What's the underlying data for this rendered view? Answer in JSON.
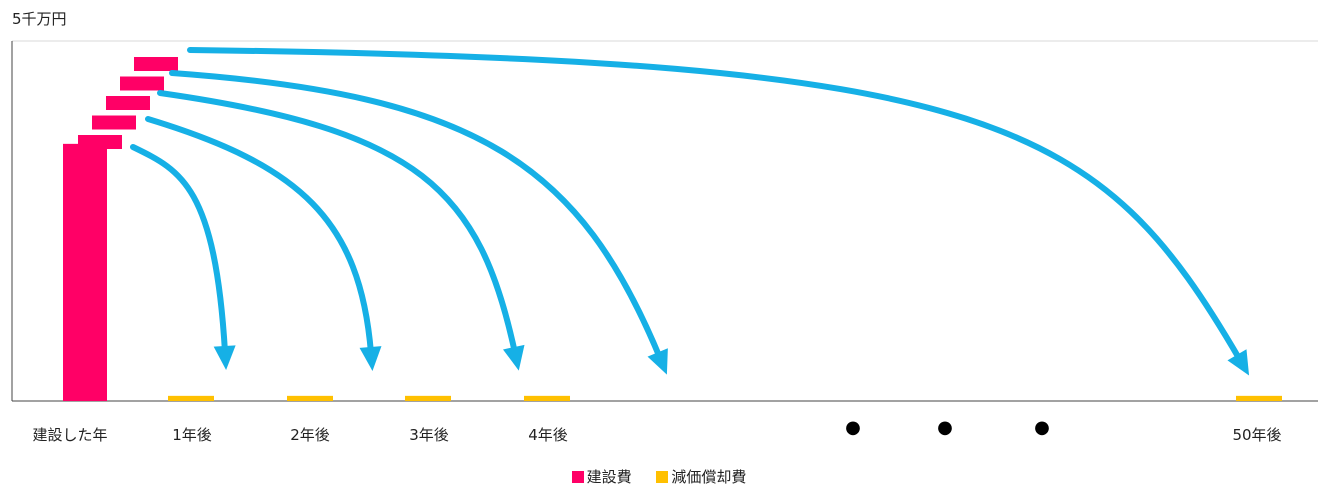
{
  "chart_data": {
    "type": "bar",
    "y_axis_label": "5千万円",
    "categories": [
      "建設した年",
      "1年後",
      "2年後",
      "3年後",
      "4年後",
      "50年後"
    ],
    "ellipsis": [
      "●",
      "●",
      "●"
    ],
    "series": [
      {
        "name": "建設費",
        "color": "#FF0066",
        "values": [
          2.5,
          0,
          0,
          0,
          0,
          0
        ]
      },
      {
        "name": "減価償却費",
        "color": "#FFC000",
        "values": [
          0,
          0.05,
          0.05,
          0.05,
          0.05,
          0.05
        ]
      }
    ],
    "stacked_segments": {
      "series": "建設費",
      "category": "建設した年",
      "count": 5,
      "arrow_targets": [
        "1年後",
        "2年後",
        "3年後",
        "4年後",
        "",
        "50年後"
      ]
    },
    "arrow_color": "#16B0E6",
    "ylim": [
      0,
      3.5
    ],
    "grid": false,
    "legend_position": "bottom"
  }
}
